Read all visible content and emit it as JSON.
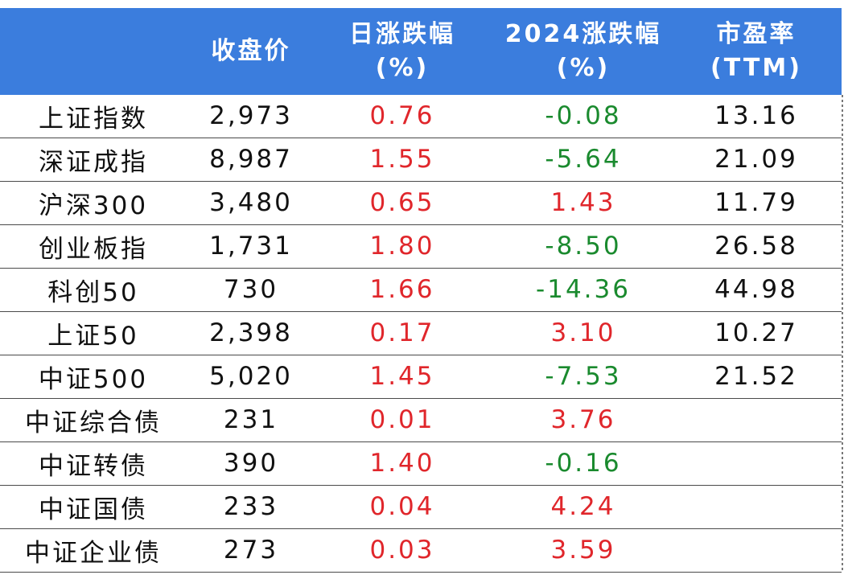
{
  "colors": {
    "header_bg": "#3b7ddd",
    "up": "#e0262b",
    "down": "#1a8a2e"
  },
  "chart_data": {
    "type": "table",
    "columns": [
      {
        "line1": "",
        "line2": ""
      },
      {
        "line1": "收盘价",
        "line2": ""
      },
      {
        "line1": "日涨跌幅",
        "line2": "(%)"
      },
      {
        "line1": "2024涨跌幅",
        "line2": "(%)"
      },
      {
        "line1": "市盈率",
        "line2": "(TTM)"
      }
    ],
    "rows": [
      {
        "name": "上证指数",
        "close": "2,973",
        "daily": "0.76",
        "ytd": "-0.08",
        "pe": "13.16"
      },
      {
        "name": "深证成指",
        "close": "8,987",
        "daily": "1.55",
        "ytd": "-5.64",
        "pe": "21.09"
      },
      {
        "name": "沪深300",
        "close": "3,480",
        "daily": "0.65",
        "ytd": "1.43",
        "pe": "11.79"
      },
      {
        "name": "创业板指",
        "close": "1,731",
        "daily": "1.80",
        "ytd": "-8.50",
        "pe": "26.58"
      },
      {
        "name": "科创50",
        "close": "730",
        "daily": "1.66",
        "ytd": "-14.36",
        "pe": "44.98"
      },
      {
        "name": "上证50",
        "close": "2,398",
        "daily": "0.17",
        "ytd": "3.10",
        "pe": "10.27"
      },
      {
        "name": "中证500",
        "close": "5,020",
        "daily": "1.45",
        "ytd": "-7.53",
        "pe": "21.52"
      },
      {
        "name": "中证综合债",
        "close": "231",
        "daily": "0.01",
        "ytd": "3.76",
        "pe": ""
      },
      {
        "name": "中证转债",
        "close": "390",
        "daily": "1.40",
        "ytd": "-0.16",
        "pe": ""
      },
      {
        "name": "中证国债",
        "close": "233",
        "daily": "0.04",
        "ytd": "4.24",
        "pe": ""
      },
      {
        "name": "中证企业债",
        "close": "273",
        "daily": "0.03",
        "ytd": "3.59",
        "pe": ""
      }
    ]
  }
}
